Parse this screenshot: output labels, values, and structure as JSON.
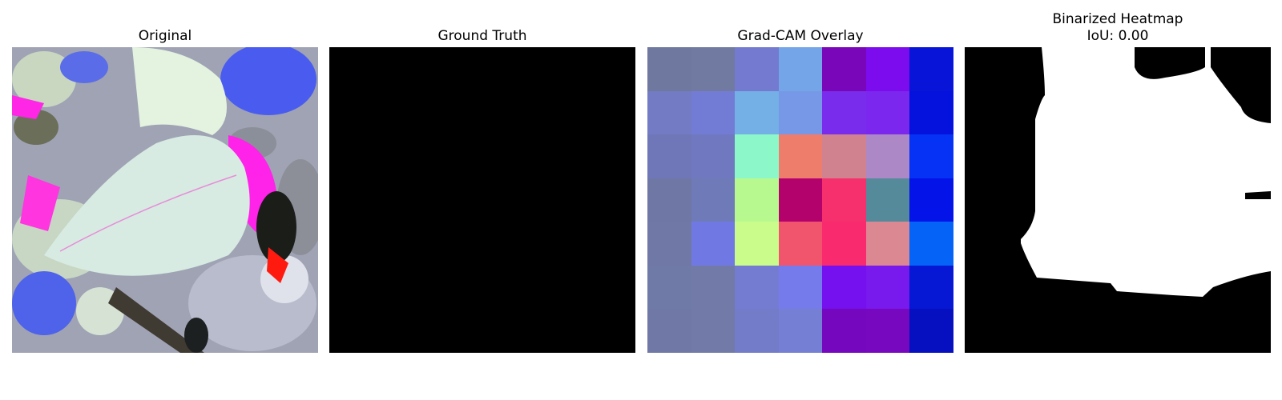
{
  "panels": {
    "original": {
      "title": "Original"
    },
    "ground_truth": {
      "title": "Ground Truth"
    },
    "gradcam": {
      "title": "Grad-CAM Overlay",
      "cells": [
        [
          "#6f789f",
          "#717aa0",
          "#737ad0",
          "#74a5e8",
          "#7906b8",
          "#7c0bee",
          "#0815d8"
        ],
        [
          "#737bc4",
          "#737cd4",
          "#74b0e6",
          "#7698e6",
          "#7a2ced",
          "#7b27ed",
          "#0512dd"
        ],
        [
          "#6f77b8",
          "#7079bf",
          "#8cf8c9",
          "#ef7d6c",
          "#d0828f",
          "#ad88c6",
          "#0532f4"
        ],
        [
          "#6f77a5",
          "#6f7ab8",
          "#b8f98f",
          "#b4026d",
          "#f5306c",
          "#558a9b",
          "#0413e8"
        ],
        [
          "#7079a5",
          "#7079e3",
          "#c9fc8a",
          "#f1556e",
          "#f92a6e",
          "#db8893",
          "#0563f8"
        ],
        [
          "#707aa6",
          "#727ba7",
          "#747cd2",
          "#757bea",
          "#7510ef",
          "#7819ee",
          "#0618d4"
        ],
        [
          "#7079a5",
          "#727ba7",
          "#737cc8",
          "#7580d4",
          "#7507bf",
          "#7808bf",
          "#0610c0"
        ]
      ]
    },
    "binarized": {
      "title": "Binarized Heatmap",
      "iou_label": "IoU: 0.00"
    }
  }
}
